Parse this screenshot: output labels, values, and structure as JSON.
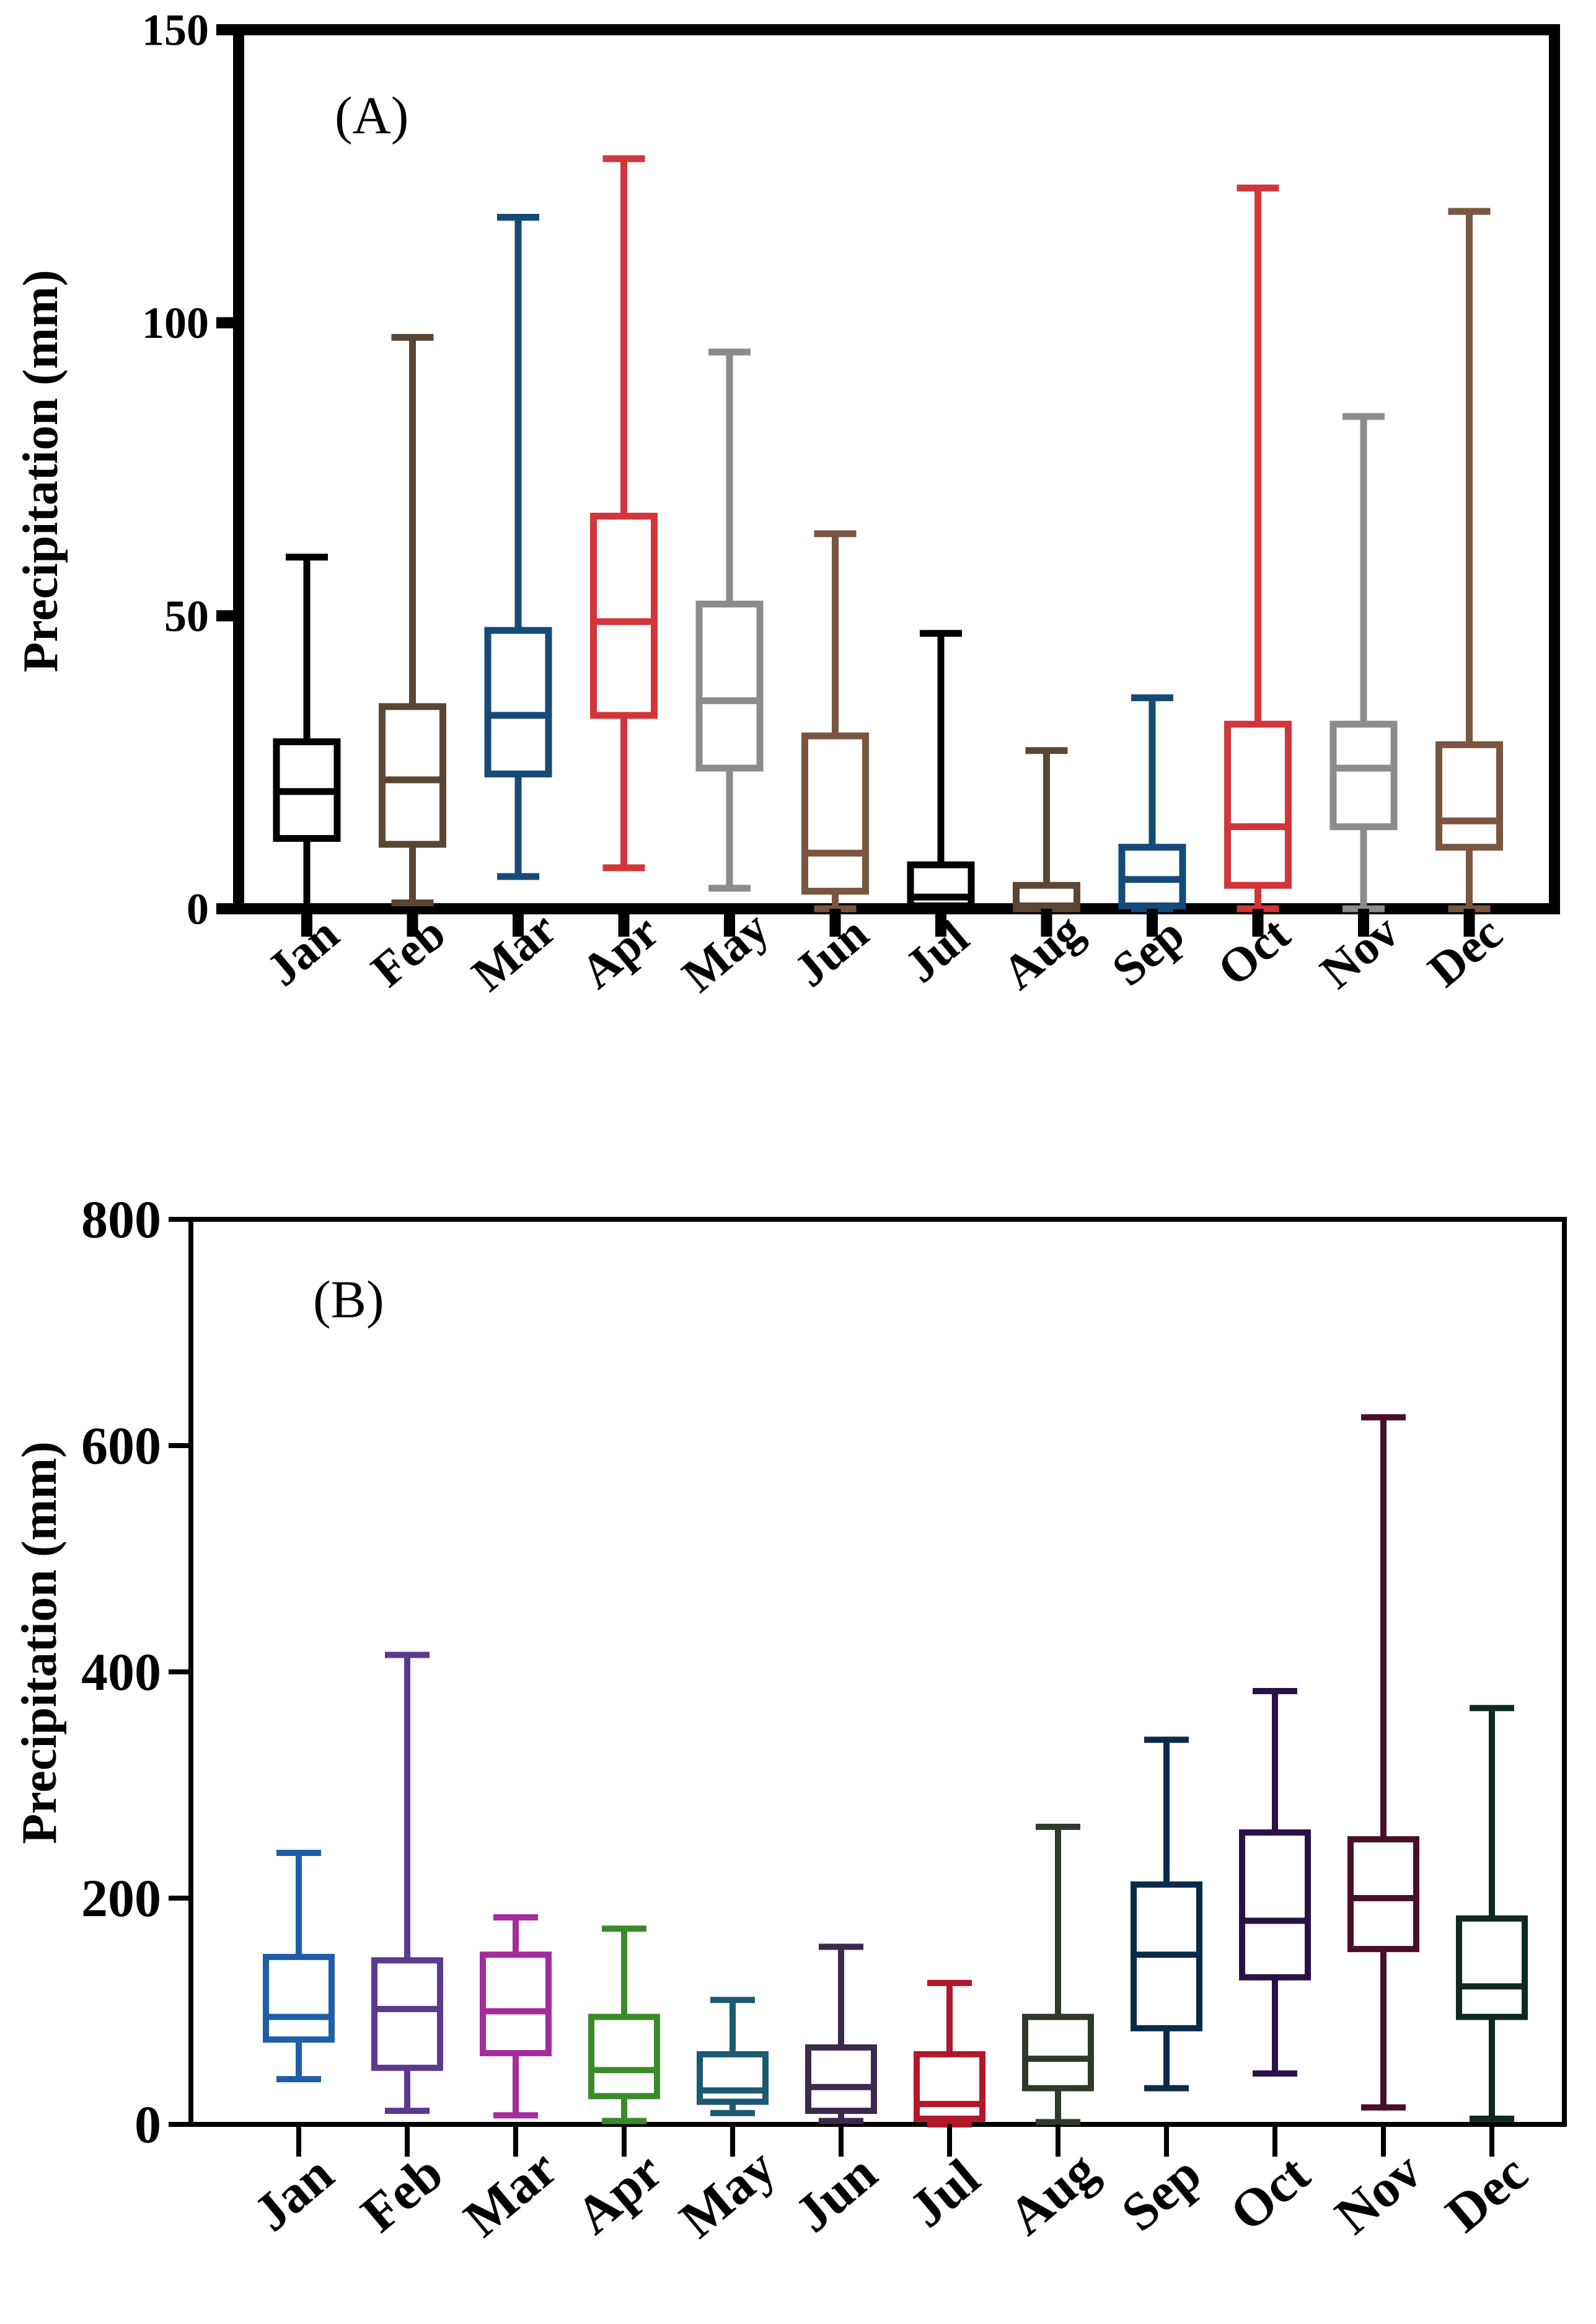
{
  "chart_data": [
    {
      "type": "boxplot",
      "panel_label": "(A)",
      "ylabel": "Precipitation (mm)",
      "xlabel": "",
      "ylim": [
        0,
        150
      ],
      "yticks": [
        0,
        50,
        100,
        150
      ],
      "grid": false,
      "categories": [
        "Jan",
        "Feb",
        "Mar",
        "Apr",
        "May",
        "Jun",
        "Jul",
        "Aug",
        "Sep",
        "Oct",
        "Nov",
        "Dec"
      ],
      "boxes": [
        {
          "month": "Jan",
          "min": 0,
          "q1": 12,
          "median": 20,
          "q3": 28.5,
          "max": 60,
          "color": "#000000"
        },
        {
          "month": "Feb",
          "min": 1,
          "q1": 11,
          "median": 22,
          "q3": 34.5,
          "max": 97.5,
          "color": "#5a4632"
        },
        {
          "month": "Mar",
          "min": 5.5,
          "q1": 23,
          "median": 33,
          "q3": 47.5,
          "max": 118,
          "color": "#164a78"
        },
        {
          "month": "Apr",
          "min": 7,
          "q1": 33,
          "median": 49,
          "q3": 67,
          "max": 128,
          "color": "#d2363a"
        },
        {
          "month": "May",
          "min": 3.5,
          "q1": 24,
          "median": 35.5,
          "q3": 52,
          "max": 95,
          "color": "#8c8c8c"
        },
        {
          "month": "Jun",
          "min": 0,
          "q1": 3,
          "median": 9.5,
          "q3": 29.5,
          "max": 64,
          "color": "#7a5640"
        },
        {
          "month": "Jul",
          "min": 0,
          "q1": 0.5,
          "median": 2,
          "q3": 7.5,
          "max": 47,
          "color": "#000000"
        },
        {
          "month": "Aug",
          "min": 0,
          "q1": 0,
          "median": 0.5,
          "q3": 4,
          "max": 27,
          "color": "#5a4632"
        },
        {
          "month": "Sep",
          "min": 0,
          "q1": 0.5,
          "median": 5,
          "q3": 10.5,
          "max": 36,
          "color": "#164a78"
        },
        {
          "month": "Oct",
          "min": 0,
          "q1": 4,
          "median": 14,
          "q3": 31.5,
          "max": 123,
          "color": "#d2363a"
        },
        {
          "month": "Nov",
          "min": 0,
          "q1": 14,
          "median": 24,
          "q3": 31.5,
          "max": 84,
          "color": "#8c8c8c"
        },
        {
          "month": "Dec",
          "min": 0,
          "q1": 10.5,
          "median": 15,
          "q3": 28,
          "max": 119,
          "color": "#7a5640"
        }
      ]
    },
    {
      "type": "boxplot",
      "panel_label": "(B)",
      "ylabel": "Precipitation (mm)",
      "xlabel": "",
      "ylim": [
        0,
        800
      ],
      "yticks": [
        0,
        200,
        400,
        600,
        800
      ],
      "grid": false,
      "categories": [
        "Jan",
        "Feb",
        "Mar",
        "Apr",
        "May",
        "Jun",
        "Jul",
        "Aug",
        "Sep",
        "Oct",
        "Nov",
        "Dec"
      ],
      "boxes": [
        {
          "month": "Jan",
          "min": 40,
          "q1": 75,
          "median": 95,
          "q3": 148,
          "max": 240,
          "color": "#1f5fa8"
        },
        {
          "month": "Feb",
          "min": 12,
          "q1": 50,
          "median": 102,
          "q3": 145,
          "max": 415,
          "color": "#5b3a8e"
        },
        {
          "month": "Mar",
          "min": 8,
          "q1": 63,
          "median": 100,
          "q3": 150,
          "max": 183,
          "color": "#a52c9c"
        },
        {
          "month": "Apr",
          "min": 3,
          "q1": 25,
          "median": 48,
          "q3": 95,
          "max": 173,
          "color": "#3a8a2a"
        },
        {
          "month": "May",
          "min": 10,
          "q1": 20,
          "median": 30,
          "q3": 62,
          "max": 110,
          "color": "#1b5a70"
        },
        {
          "month": "Jun",
          "min": 3,
          "q1": 12,
          "median": 33,
          "q3": 68,
          "max": 157,
          "color": "#3c2a4e"
        },
        {
          "month": "Jul",
          "min": 0,
          "q1": 5,
          "median": 18,
          "q3": 62,
          "max": 125,
          "color": "#b2182b"
        },
        {
          "month": "Aug",
          "min": 2,
          "q1": 32,
          "median": 58,
          "q3": 95,
          "max": 263,
          "color": "#2f3a2a"
        },
        {
          "month": "Sep",
          "min": 32,
          "q1": 85,
          "median": 150,
          "q3": 212,
          "max": 340,
          "color": "#0c2a4a"
        },
        {
          "month": "Oct",
          "min": 45,
          "q1": 130,
          "median": 180,
          "q3": 258,
          "max": 383,
          "color": "#2a1248"
        },
        {
          "month": "Nov",
          "min": 15,
          "q1": 155,
          "median": 200,
          "q3": 252,
          "max": 625,
          "color": "#4a0f28"
        },
        {
          "month": "Dec",
          "min": 5,
          "q1": 95,
          "median": 122,
          "q3": 182,
          "max": 368,
          "color": "#0e2a1e"
        }
      ]
    }
  ]
}
